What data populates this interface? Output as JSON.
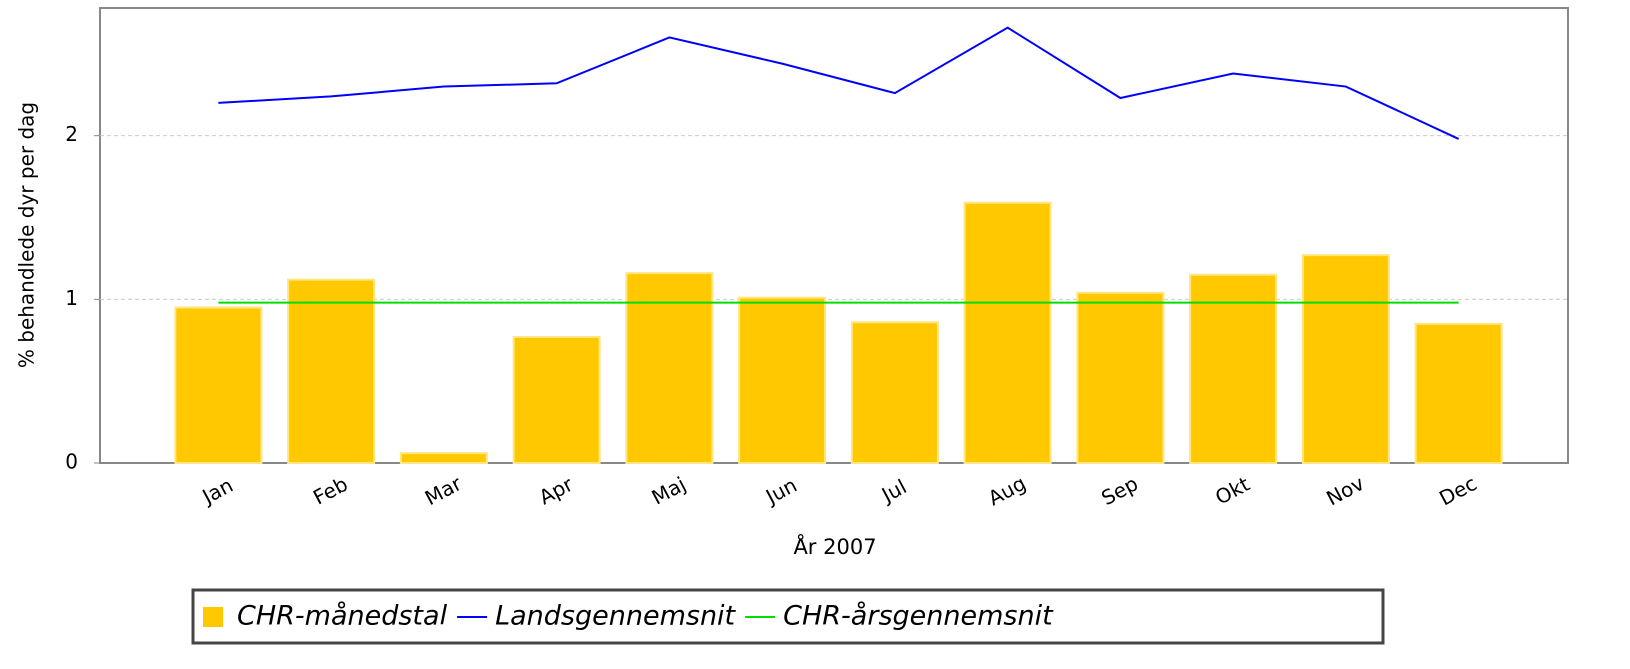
{
  "chart_data": {
    "type": "combo",
    "y_label": "% behandlede dyr per dag",
    "x_label": "År 2007",
    "categories": [
      "Jan",
      "Feb",
      "Mar",
      "Apr",
      "Maj",
      "Jun",
      "Jul",
      "Aug",
      "Sep",
      "Okt",
      "Nov",
      "Dec"
    ],
    "series": [
      {
        "name": "CHR-månedstal",
        "type": "bar",
        "color": "#ffc800",
        "values": [
          0.95,
          1.12,
          0.06,
          0.77,
          1.16,
          1.01,
          0.86,
          1.59,
          1.04,
          1.15,
          1.27,
          0.85
        ]
      },
      {
        "name": "Landsgennemsnit",
        "type": "line",
        "color": "#0000ff",
        "values": [
          2.2,
          2.24,
          2.3,
          2.32,
          2.6,
          2.44,
          2.26,
          2.66,
          2.23,
          2.38,
          2.3,
          1.98
        ]
      },
      {
        "name": "CHR-årsgennemsnit",
        "type": "line",
        "color": "#00dd00",
        "values": [
          0.98,
          0.98,
          0.98,
          0.98,
          0.98,
          0.98,
          0.98,
          0.98,
          0.98,
          0.98,
          0.98,
          0.98
        ]
      }
    ],
    "ylim": [
      0,
      2.78
    ],
    "yticks": [
      0,
      1,
      2
    ],
    "grid": true
  }
}
